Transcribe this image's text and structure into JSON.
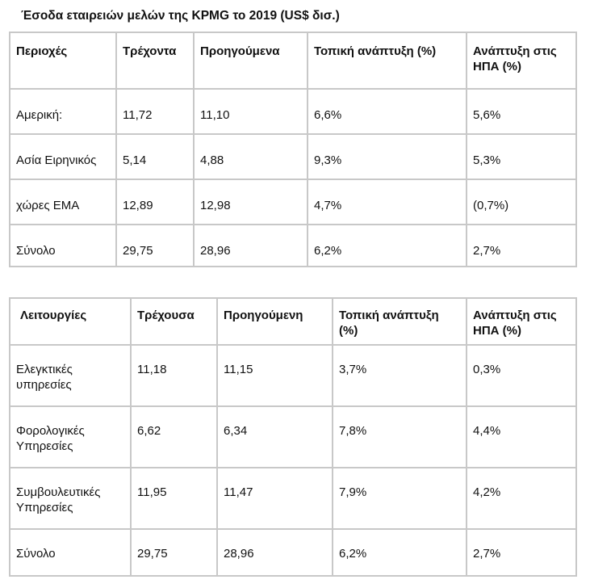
{
  "title": "Έσοδα εταιρειών μελών της KPMG το 2019 (US$ δισ.)",
  "regions_table": {
    "headers": [
      "Περιοχές",
      "Τρέχοντα",
      "Προηγούμενα",
      "Τοπική ανάπτυξη (%)",
      "Ανάπτυξη στις ΗΠΑ (%)"
    ],
    "rows": [
      [
        "Αμερική:",
        "11,72",
        "11,10",
        "6,6%",
        "5,6%"
      ],
      [
        "Ασία Ειρηνικός",
        "5,14",
        "4,88",
        "9,3%",
        "5,3%"
      ],
      [
        "χώρες ΕΜΑ",
        "12,89",
        "12,98",
        "4,7%",
        "(0,7%)"
      ],
      [
        "Σύνολο",
        "29,75",
        "28,96",
        "6,2%",
        "2,7%"
      ]
    ]
  },
  "functions_table": {
    "headers": [
      "Λειτουργίες",
      "Τρέχουσα",
      "Προηγούμενη",
      "Τοπική ανάπτυξη (%)",
      "Ανάπτυξη στις ΗΠΑ (%)"
    ],
    "rows": [
      [
        "Ελεγκτικές υπηρεσίες",
        "11,18",
        "11,15",
        "3,7%",
        "0,3%"
      ],
      [
        "Φορολογικές Υπηρεσίες",
        "6,62",
        "6,34",
        "7,8%",
        "4,4%"
      ],
      [
        "Συμβουλευτικές Υπηρεσίες",
        "11,95",
        "11,47",
        "7,9%",
        "4,2%"
      ],
      [
        "Σύνολο",
        "29,75",
        "28,96",
        "6,2%",
        "2,7%"
      ]
    ]
  }
}
